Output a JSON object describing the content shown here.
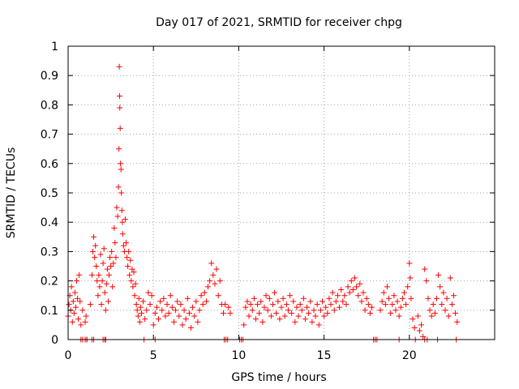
{
  "chart_data": {
    "type": "scatter",
    "title": "Day 017 of 2021, SRMTID for receiver chpg",
    "xlabel": "GPS time / hours",
    "ylabel": "SRMTID / TECUs",
    "xlim": [
      0,
      25
    ],
    "ylim": [
      0,
      1
    ],
    "grid": true,
    "marker": "+",
    "color": "#ff0000",
    "xticks": [
      0,
      5,
      10,
      15,
      20
    ],
    "xtick_labels": [
      "0",
      "5",
      "10",
      "15",
      "20"
    ],
    "yticks": [
      0,
      0.1,
      0.2,
      0.3,
      0.4,
      0.5,
      0.6,
      0.7,
      0.8,
      0.9,
      1
    ],
    "ytick_labels": [
      "0",
      "0.1",
      "0.2",
      "0.3",
      "0.4",
      "0.5",
      "0.6",
      "0.7",
      "0.8",
      "0.9",
      "1"
    ],
    "series": [
      {
        "name": "SRMTID",
        "points": [
          [
            0.0,
            0.08
          ],
          [
            0.05,
            0.12
          ],
          [
            0.1,
            0.15
          ],
          [
            0.15,
            0.1
          ],
          [
            0.2,
            0.18
          ],
          [
            0.25,
            0.06
          ],
          [
            0.3,
            0.13
          ],
          [
            0.35,
            0.09
          ],
          [
            0.4,
            0.16
          ],
          [
            0.45,
            0.11
          ],
          [
            0.5,
            0.2
          ],
          [
            0.55,
            0.14
          ],
          [
            0.6,
            0.07
          ],
          [
            0.65,
            0.22
          ],
          [
            0.7,
            0.13
          ],
          [
            0.75,
            0.05
          ],
          [
            0.85,
            0.1
          ],
          [
            1.0,
            0.06
          ],
          [
            1.05,
            0.08
          ],
          [
            1.1,
            0.0
          ],
          [
            1.3,
            0.12
          ],
          [
            1.4,
            0.22
          ],
          [
            1.45,
            0.3
          ],
          [
            1.5,
            0.35
          ],
          [
            1.55,
            0.28
          ],
          [
            1.6,
            0.32
          ],
          [
            1.65,
            0.25
          ],
          [
            1.7,
            0.2
          ],
          [
            1.75,
            0.15
          ],
          [
            1.8,
            0.22
          ],
          [
            1.85,
            0.18
          ],
          [
            1.9,
            0.29
          ],
          [
            1.95,
            0.12
          ],
          [
            2.0,
            0.2
          ],
          [
            2.05,
            0.26
          ],
          [
            2.1,
            0.31
          ],
          [
            2.15,
            0.16
          ],
          [
            2.2,
            0.1
          ],
          [
            2.25,
            0.19
          ],
          [
            2.3,
            0.24
          ],
          [
            2.35,
            0.13
          ],
          [
            2.4,
            0.22
          ],
          [
            2.45,
            0.28
          ],
          [
            2.5,
            0.25
          ],
          [
            2.55,
            0.3
          ],
          [
            2.6,
            0.18
          ],
          [
            2.65,
            0.26
          ],
          [
            2.7,
            0.38
          ],
          [
            2.75,
            0.33
          ],
          [
            2.8,
            0.28
          ],
          [
            2.85,
            0.45
          ],
          [
            2.9,
            0.42
          ],
          [
            2.95,
            0.52
          ],
          [
            2.98,
            0.65
          ],
          [
            3.0,
            0.93
          ],
          [
            3.02,
            0.83
          ],
          [
            3.03,
            0.79
          ],
          [
            3.05,
            0.72
          ],
          [
            3.07,
            0.6
          ],
          [
            3.1,
            0.58
          ],
          [
            3.12,
            0.5
          ],
          [
            3.15,
            0.44
          ],
          [
            3.18,
            0.4
          ],
          [
            3.2,
            0.36
          ],
          [
            3.25,
            0.32
          ],
          [
            3.3,
            0.3
          ],
          [
            3.35,
            0.41
          ],
          [
            3.4,
            0.33
          ],
          [
            3.45,
            0.28
          ],
          [
            3.5,
            0.25
          ],
          [
            3.55,
            0.3
          ],
          [
            3.6,
            0.22
          ],
          [
            3.65,
            0.27
          ],
          [
            3.7,
            0.2
          ],
          [
            3.75,
            0.24
          ],
          [
            3.8,
            0.18
          ],
          [
            3.85,
            0.23
          ],
          [
            3.9,
            0.15
          ],
          [
            3.95,
            0.19
          ],
          [
            4.0,
            0.12
          ],
          [
            4.05,
            0.1
          ],
          [
            4.1,
            0.08
          ],
          [
            4.15,
            0.14
          ],
          [
            4.2,
            0.06
          ],
          [
            4.25,
            0.11
          ],
          [
            4.3,
            0.09
          ],
          [
            4.4,
            0.13
          ],
          [
            4.5,
            0.07
          ],
          [
            4.6,
            0.1
          ],
          [
            4.7,
            0.16
          ],
          [
            4.8,
            0.12
          ],
          [
            4.9,
            0.15
          ],
          [
            5.0,
            0.05
          ],
          [
            5.1,
            0.09
          ],
          [
            5.2,
            0.11
          ],
          [
            5.3,
            0.07
          ],
          [
            5.4,
            0.13
          ],
          [
            5.5,
            0.1
          ],
          [
            5.6,
            0.14
          ],
          [
            5.7,
            0.08
          ],
          [
            5.8,
            0.12
          ],
          [
            5.9,
            0.09
          ],
          [
            6.0,
            0.15
          ],
          [
            6.1,
            0.11
          ],
          [
            6.2,
            0.06
          ],
          [
            6.3,
            0.1
          ],
          [
            6.4,
            0.13
          ],
          [
            6.5,
            0.08
          ],
          [
            6.6,
            0.12
          ],
          [
            6.7,
            0.05
          ],
          [
            6.8,
            0.1
          ],
          [
            6.9,
            0.07
          ],
          [
            7.0,
            0.14
          ],
          [
            7.1,
            0.09
          ],
          [
            7.2,
            0.04
          ],
          [
            7.3,
            0.11
          ],
          [
            7.4,
            0.08
          ],
          [
            7.5,
            0.13
          ],
          [
            7.6,
            0.06
          ],
          [
            7.7,
            0.1
          ],
          [
            7.8,
            0.15
          ],
          [
            7.9,
            0.12
          ],
          [
            8.0,
            0.16
          ],
          [
            8.1,
            0.13
          ],
          [
            8.2,
            0.18
          ],
          [
            8.3,
            0.2
          ],
          [
            8.4,
            0.26
          ],
          [
            8.5,
            0.22
          ],
          [
            8.6,
            0.19
          ],
          [
            8.7,
            0.24
          ],
          [
            8.8,
            0.15
          ],
          [
            8.9,
            0.2
          ],
          [
            9.0,
            0.12
          ],
          [
            9.1,
            0.09
          ],
          [
            9.2,
            0.12
          ],
          [
            9.4,
            0.11
          ],
          [
            9.5,
            0.09
          ],
          [
            10.3,
            0.05
          ],
          [
            10.4,
            0.11
          ],
          [
            10.5,
            0.13
          ],
          [
            10.6,
            0.08
          ],
          [
            10.7,
            0.12
          ],
          [
            10.8,
            0.1
          ],
          [
            10.9,
            0.14
          ],
          [
            11.0,
            0.07
          ],
          [
            11.1,
            0.12
          ],
          [
            11.2,
            0.09
          ],
          [
            11.3,
            0.13
          ],
          [
            11.4,
            0.06
          ],
          [
            11.5,
            0.11
          ],
          [
            11.6,
            0.15
          ],
          [
            11.7,
            0.1
          ],
          [
            11.8,
            0.14
          ],
          [
            11.9,
            0.08
          ],
          [
            12.0,
            0.12
          ],
          [
            12.1,
            0.16
          ],
          [
            12.2,
            0.09
          ],
          [
            12.3,
            0.13
          ],
          [
            12.4,
            0.07
          ],
          [
            12.5,
            0.11
          ],
          [
            12.6,
            0.14
          ],
          [
            12.7,
            0.08
          ],
          [
            12.8,
            0.12
          ],
          [
            12.9,
            0.1
          ],
          [
            13.0,
            0.15
          ],
          [
            13.1,
            0.09
          ],
          [
            13.2,
            0.13
          ],
          [
            13.3,
            0.06
          ],
          [
            13.4,
            0.11
          ],
          [
            13.5,
            0.08
          ],
          [
            13.6,
            0.12
          ],
          [
            13.7,
            0.1
          ],
          [
            13.8,
            0.14
          ],
          [
            13.9,
            0.07
          ],
          [
            14.0,
            0.11
          ],
          [
            14.1,
            0.09
          ],
          [
            14.2,
            0.13
          ],
          [
            14.3,
            0.06
          ],
          [
            14.4,
            0.1
          ],
          [
            14.5,
            0.08
          ],
          [
            14.6,
            0.12
          ],
          [
            14.7,
            0.05
          ],
          [
            14.8,
            0.1
          ],
          [
            14.9,
            0.13
          ],
          [
            15.0,
            0.08
          ],
          [
            15.1,
            0.11
          ],
          [
            15.2,
            0.09
          ],
          [
            15.3,
            0.14
          ],
          [
            15.4,
            0.12
          ],
          [
            15.5,
            0.16
          ],
          [
            15.6,
            0.1
          ],
          [
            15.7,
            0.13
          ],
          [
            15.8,
            0.15
          ],
          [
            15.9,
            0.11
          ],
          [
            16.0,
            0.17
          ],
          [
            16.1,
            0.13
          ],
          [
            16.2,
            0.15
          ],
          [
            16.3,
            0.12
          ],
          [
            16.4,
            0.18
          ],
          [
            16.5,
            0.16
          ],
          [
            16.6,
            0.2
          ],
          [
            16.7,
            0.17
          ],
          [
            16.8,
            0.21
          ],
          [
            16.9,
            0.18
          ],
          [
            17.0,
            0.15
          ],
          [
            17.1,
            0.19
          ],
          [
            17.2,
            0.13
          ],
          [
            17.3,
            0.16
          ],
          [
            17.4,
            0.1
          ],
          [
            17.5,
            0.14
          ],
          [
            17.6,
            0.12
          ],
          [
            17.7,
            0.09
          ],
          [
            17.8,
            0.11
          ],
          [
            18.3,
            0.1
          ],
          [
            18.4,
            0.13
          ],
          [
            18.5,
            0.16
          ],
          [
            18.6,
            0.12
          ],
          [
            18.7,
            0.18
          ],
          [
            18.8,
            0.14
          ],
          [
            18.9,
            0.09
          ],
          [
            19.0,
            0.12
          ],
          [
            19.1,
            0.15
          ],
          [
            19.2,
            0.1
          ],
          [
            19.3,
            0.13
          ],
          [
            19.4,
            0.08
          ],
          [
            19.5,
            0.11
          ],
          [
            19.6,
            0.14
          ],
          [
            19.7,
            0.16
          ],
          [
            19.8,
            0.12
          ],
          [
            19.9,
            0.18
          ],
          [
            20.0,
            0.26
          ],
          [
            20.05,
            0.21
          ],
          [
            20.1,
            0.14
          ],
          [
            20.2,
            0.07
          ],
          [
            20.3,
            0.04
          ],
          [
            20.5,
            0.08
          ],
          [
            20.6,
            0.03
          ],
          [
            20.7,
            0.05
          ],
          [
            20.8,
            0.01
          ],
          [
            20.9,
            0.24
          ],
          [
            21.0,
            0.2
          ],
          [
            21.1,
            0.14
          ],
          [
            21.2,
            0.1
          ],
          [
            21.3,
            0.08
          ],
          [
            21.4,
            0.12
          ],
          [
            21.5,
            0.09
          ],
          [
            21.6,
            0.14
          ],
          [
            21.7,
            0.22
          ],
          [
            21.8,
            0.18
          ],
          [
            21.9,
            0.12
          ],
          [
            22.0,
            0.16
          ],
          [
            22.1,
            0.1
          ],
          [
            22.2,
            0.14
          ],
          [
            22.3,
            0.08
          ],
          [
            22.4,
            0.21
          ],
          [
            22.5,
            0.12
          ],
          [
            22.6,
            0.15
          ],
          [
            22.7,
            0.09
          ],
          [
            22.8,
            0.06
          ]
        ],
        "zero_markers": [
          0.75,
          0.85,
          1.0,
          1.1,
          1.4,
          1.5,
          2.05,
          2.15,
          2.2,
          4.45,
          5.1,
          9.15,
          9.25,
          9.35,
          10.05,
          10.15,
          10.25,
          17.9,
          18.0,
          18.1,
          19.4,
          20.35,
          20.9,
          21.05,
          21.65,
          22.75
        ]
      }
    ]
  }
}
